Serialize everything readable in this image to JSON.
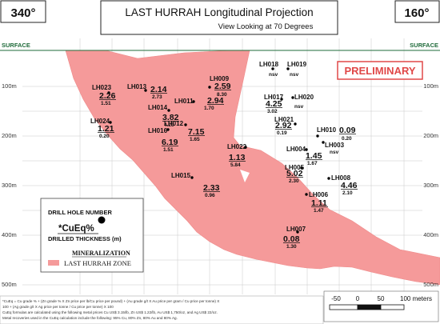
{
  "header": {
    "bearing_left": "340°",
    "bearing_right": "160°",
    "title": "LAST HURRAH  Longitudinal Projection",
    "subtitle": "View Looking at 70 Degrees"
  },
  "surface_left": "SURFACE",
  "surface_right": "SURFACE",
  "preliminary": "PRELIMINARY",
  "depth_labels": [
    "100m",
    "200m",
    "300m",
    "400m",
    "500m"
  ],
  "drill_holes": [
    {
      "name": "LH023",
      "value": "2.26",
      "thickness": "1.51"
    },
    {
      "name": "LH013",
      "value": "2.14",
      "thickness": "2.73"
    },
    {
      "name": "LH009",
      "value": "2.59",
      "thickness": "8.30"
    },
    {
      "name": "LH011",
      "value": "2.94",
      "thickness": "1.70"
    },
    {
      "name": "LH014",
      "value": "3.82",
      "thickness": "4.23"
    },
    {
      "name": "LH024",
      "value": "1.21",
      "thickness": "0.20"
    },
    {
      "name": "LH016",
      "value": "6.19",
      "thickness": "1.51"
    },
    {
      "name": "LH012",
      "value": "7.15",
      "thickness": "1.65"
    },
    {
      "name": "LH018",
      "value": "",
      "thickness": "",
      "note": "nsv"
    },
    {
      "name": "LH019",
      "value": "",
      "thickness": "",
      "note": "nsv"
    },
    {
      "name": "LH017",
      "value": "4.25",
      "thickness": "3.02"
    },
    {
      "name": "LH020",
      "value": "",
      "thickness": "",
      "note": "nsv"
    },
    {
      "name": "LH021",
      "value": "2.92",
      "thickness": "0.19"
    },
    {
      "name": "LH022",
      "value": "1.13",
      "thickness": "5.84"
    },
    {
      "name": "LH010",
      "value": "0.09",
      "thickness": "0.20"
    },
    {
      "name": "LH003",
      "value": "",
      "thickness": "",
      "note": "nsv"
    },
    {
      "name": "LH004",
      "value": "1.45",
      "thickness": "1.67"
    },
    {
      "name": "LH005",
      "value": "5.02",
      "thickness": "2.30"
    },
    {
      "name": "LH008",
      "value": "4.46",
      "thickness": "2.10"
    },
    {
      "name": "LH015",
      "value": "2.33",
      "thickness": "0.96"
    },
    {
      "name": "LH006",
      "value": "1.11",
      "thickness": "1.47"
    },
    {
      "name": "LH007",
      "value": "0.08",
      "thickness": "1.30"
    }
  ],
  "legend": {
    "drill_hole_number": "DRILL HOLE NUMBER",
    "cueq": "*CuEq%",
    "drilled_thickness": "DRILLED THICKNESS (m)",
    "mineralization": "MINERALIZATION",
    "zone": "LAST HURRAH ZONE",
    "zone_color": "#f59a9a"
  },
  "scale": {
    "labels": [
      "-50",
      "0",
      "50",
      "100 meters"
    ]
  },
  "footnotes": [
    "*CuEq = Cu grade % + (Zn grade % X Zn price per lb/Cu price per pound) + (Au grade g/t X Au price per gram / Cu price per tonne) X",
    "100 + (Ag grade g/t X Ag price per tonne / Cu price per tonne) X 100",
    "CuEq formulas are calculated using the following metal prices Cu US$ 3.15/lb, Zn US$ 1.22/lb, Au US$ 1,750/oz, and Ag US$ 22/oz.",
    "Metal recoveries used in the CuEq calculation include the following:  95% Cu, 80% Zn, 80% Au and 80% Ag."
  ],
  "colors": {
    "zone_fill": "#f59a9a",
    "surface_green": "#1f6b3a",
    "preliminary_red": "#e04848",
    "grid": "#c8c8c8"
  }
}
